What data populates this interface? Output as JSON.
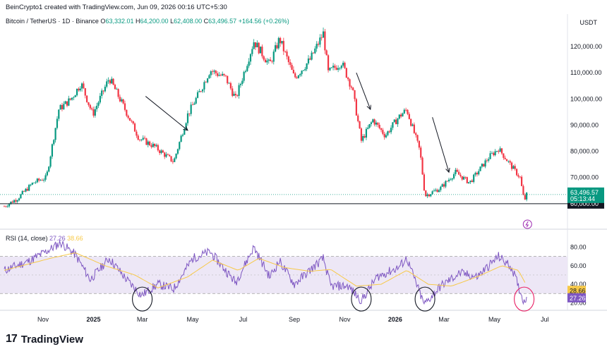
{
  "header": {
    "text": "BeinCrypto1 created with TradingView.com, Jun 09, 2026 00:16 UTC+5:30"
  },
  "symbol": {
    "name": "Bitcoin / TetherUS · 1D · Binance",
    "open_label": "O",
    "open": "63,332.01",
    "high_label": "H",
    "high": "64,200.00",
    "low_label": "L",
    "low": "62,408.00",
    "close_label": "C",
    "close": "63,496.57",
    "change": "+164.56 (+0.26%)"
  },
  "currency": "USDT",
  "rsi_panel": {
    "title": "RSI (14, close)",
    "rsi_value": "27.26",
    "ma_value": "38.66"
  },
  "brand": {
    "name": "TradingView",
    "logo_text": "17"
  },
  "colors": {
    "up": "#089981",
    "down": "#f23645",
    "rsi": "#7e57c2",
    "rsi_ma": "#f7c948",
    "band_fill": "#ede7f6",
    "annotation": "#131722",
    "highlight": "#e91e63"
  },
  "chart_data": [
    {
      "type": "candlestick",
      "ylabel": "USDT",
      "ylim": [
        57000,
        127000
      ],
      "yticks": [
        "120,000.00",
        "110,000.00",
        "100,000.00",
        "90,000.00",
        "80,000.00",
        "70,000.00"
      ],
      "ytick_values": [
        120000,
        110000,
        100000,
        90000,
        80000,
        70000
      ],
      "xticks": [
        "Nov",
        "2025",
        "Mar",
        "May",
        "Jul",
        "Sep",
        "Nov",
        "2026",
        "Mar",
        "May",
        "Jul"
      ],
      "xtick_dates": [
        "2024-11-01",
        "2025-01-01",
        "2025-03-01",
        "2025-05-01",
        "2025-07-01",
        "2025-09-01",
        "2025-11-01",
        "2026-01-01",
        "2026-03-01",
        "2026-05-01",
        "2026-07-01"
      ],
      "xlim": [
        "2024-09-15",
        "2026-07-25"
      ],
      "close_series": [
        {
          "date": "2024-09-15",
          "close": 59000
        },
        {
          "date": "2024-10-01",
          "close": 62000
        },
        {
          "date": "2024-10-20",
          "close": 68000
        },
        {
          "date": "2024-11-05",
          "close": 70000
        },
        {
          "date": "2024-11-20",
          "close": 96000
        },
        {
          "date": "2024-12-05",
          "close": 100000
        },
        {
          "date": "2024-12-17",
          "close": 106000
        },
        {
          "date": "2024-12-31",
          "close": 94000
        },
        {
          "date": "2025-01-20",
          "close": 108000
        },
        {
          "date": "2025-02-05",
          "close": 98000
        },
        {
          "date": "2025-02-25",
          "close": 85000
        },
        {
          "date": "2025-03-15",
          "close": 82000
        },
        {
          "date": "2025-04-08",
          "close": 76000
        },
        {
          "date": "2025-04-25",
          "close": 94000
        },
        {
          "date": "2025-05-10",
          "close": 103000
        },
        {
          "date": "2025-05-22",
          "close": 111000
        },
        {
          "date": "2025-06-10",
          "close": 108000
        },
        {
          "date": "2025-06-22",
          "close": 100000
        },
        {
          "date": "2025-07-14",
          "close": 122000
        },
        {
          "date": "2025-08-02",
          "close": 113000
        },
        {
          "date": "2025-08-14",
          "close": 123000
        },
        {
          "date": "2025-09-01",
          "close": 108000
        },
        {
          "date": "2025-09-20",
          "close": 115000
        },
        {
          "date": "2025-10-06",
          "close": 125000
        },
        {
          "date": "2025-10-12",
          "close": 110000
        },
        {
          "date": "2025-10-28",
          "close": 114000
        },
        {
          "date": "2025-11-10",
          "close": 104000
        },
        {
          "date": "2025-11-21",
          "close": 84000
        },
        {
          "date": "2025-12-05",
          "close": 92000
        },
        {
          "date": "2025-12-20",
          "close": 86000
        },
        {
          "date": "2026-01-05",
          "close": 93000
        },
        {
          "date": "2026-01-15",
          "close": 96000
        },
        {
          "date": "2026-01-31",
          "close": 80000
        },
        {
          "date": "2026-02-06",
          "close": 63000
        },
        {
          "date": "2026-02-25",
          "close": 66000
        },
        {
          "date": "2026-03-15",
          "close": 72000
        },
        {
          "date": "2026-04-01",
          "close": 68000
        },
        {
          "date": "2026-04-25",
          "close": 78000
        },
        {
          "date": "2026-05-06",
          "close": 81000
        },
        {
          "date": "2026-05-20",
          "close": 75000
        },
        {
          "date": "2026-06-01",
          "close": 70000
        },
        {
          "date": "2026-06-06",
          "close": 61000
        },
        {
          "date": "2026-06-09",
          "close": 63496.57
        }
      ],
      "current_price": {
        "value": 63496.57,
        "label": "63,496.57",
        "countdown": "05:13:44"
      },
      "support_line": {
        "value": 60000,
        "label": "60,000.00"
      },
      "annotations": [
        {
          "type": "arrow",
          "from": {
            "date": "2025-03-05",
            "price": 101000
          },
          "to": {
            "date": "2025-04-25",
            "price": 88000
          }
        },
        {
          "type": "arrow",
          "from": {
            "date": "2025-11-15",
            "price": 110000
          },
          "to": {
            "date": "2025-12-02",
            "price": 96000
          }
        },
        {
          "type": "arrow",
          "from": {
            "date": "2026-02-15",
            "price": 93000
          },
          "to": {
            "date": "2026-03-07",
            "price": 72000
          }
        }
      ]
    },
    {
      "type": "line",
      "name": "RSI (14, close)",
      "ylim": [
        18,
        88
      ],
      "yticks": [
        "80.00",
        "60.00",
        "40.00",
        "20.00"
      ],
      "ytick_values": [
        80,
        60,
        40,
        20
      ],
      "band": [
        30,
        70
      ],
      "mid_line": 50,
      "rsi_points": [
        {
          "date": "2024-09-15",
          "rsi": 55
        },
        {
          "date": "2024-10-15",
          "rsi": 65
        },
        {
          "date": "2024-11-10",
          "rsi": 78
        },
        {
          "date": "2024-11-22",
          "rsi": 85
        },
        {
          "date": "2024-12-10",
          "rsi": 72
        },
        {
          "date": "2024-12-28",
          "rsi": 45
        },
        {
          "date": "2025-01-20",
          "rsi": 68
        },
        {
          "date": "2025-02-10",
          "rsi": 45
        },
        {
          "date": "2025-02-28",
          "rsi": 28
        },
        {
          "date": "2025-03-20",
          "rsi": 40
        },
        {
          "date": "2025-04-08",
          "rsi": 35
        },
        {
          "date": "2025-05-01",
          "rsi": 68
        },
        {
          "date": "2025-05-22",
          "rsi": 75
        },
        {
          "date": "2025-06-22",
          "rsi": 42
        },
        {
          "date": "2025-07-14",
          "rsi": 80
        },
        {
          "date": "2025-08-02",
          "rsi": 48
        },
        {
          "date": "2025-08-14",
          "rsi": 65
        },
        {
          "date": "2025-09-01",
          "rsi": 40
        },
        {
          "date": "2025-10-06",
          "rsi": 68
        },
        {
          "date": "2025-10-15",
          "rsi": 38
        },
        {
          "date": "2025-11-05",
          "rsi": 38
        },
        {
          "date": "2025-11-21",
          "rsi": 22
        },
        {
          "date": "2025-12-10",
          "rsi": 48
        },
        {
          "date": "2026-01-05",
          "rsi": 58
        },
        {
          "date": "2026-01-15",
          "rsi": 68
        },
        {
          "date": "2026-02-05",
          "rsi": 18
        },
        {
          "date": "2026-02-25",
          "rsi": 38
        },
        {
          "date": "2026-03-20",
          "rsi": 52
        },
        {
          "date": "2026-04-10",
          "rsi": 48
        },
        {
          "date": "2026-05-06",
          "rsi": 70
        },
        {
          "date": "2026-05-22",
          "rsi": 58
        },
        {
          "date": "2026-06-06",
          "rsi": 20
        },
        {
          "date": "2026-06-09",
          "rsi": 27.26
        }
      ],
      "ma_points": [
        {
          "date": "2024-09-15",
          "ma": 55
        },
        {
          "date": "2024-11-10",
          "ma": 68
        },
        {
          "date": "2024-12-10",
          "ma": 74
        },
        {
          "date": "2025-01-15",
          "ma": 60
        },
        {
          "date": "2025-02-20",
          "ma": 50
        },
        {
          "date": "2025-03-20",
          "ma": 36
        },
        {
          "date": "2025-04-25",
          "ma": 48
        },
        {
          "date": "2025-05-25",
          "ma": 66
        },
        {
          "date": "2025-06-25",
          "ma": 55
        },
        {
          "date": "2025-07-20",
          "ma": 68
        },
        {
          "date": "2025-08-20",
          "ma": 58
        },
        {
          "date": "2025-09-20",
          "ma": 54
        },
        {
          "date": "2025-10-15",
          "ma": 56
        },
        {
          "date": "2025-11-15",
          "ma": 38
        },
        {
          "date": "2025-12-15",
          "ma": 40
        },
        {
          "date": "2026-01-15",
          "ma": 55
        },
        {
          "date": "2026-02-10",
          "ma": 40
        },
        {
          "date": "2026-03-10",
          "ma": 38
        },
        {
          "date": "2026-04-10",
          "ma": 48
        },
        {
          "date": "2026-05-10",
          "ma": 60
        },
        {
          "date": "2026-05-30",
          "ma": 55
        },
        {
          "date": "2026-06-09",
          "ma": 38.66
        }
      ],
      "current": {
        "rsi": "27.26",
        "ma": "38.66",
        "band_upper": "28.66"
      },
      "circled_lows": [
        "2025-03-01",
        "2025-11-21",
        "2026-02-06",
        "2026-06-06"
      ]
    }
  ]
}
